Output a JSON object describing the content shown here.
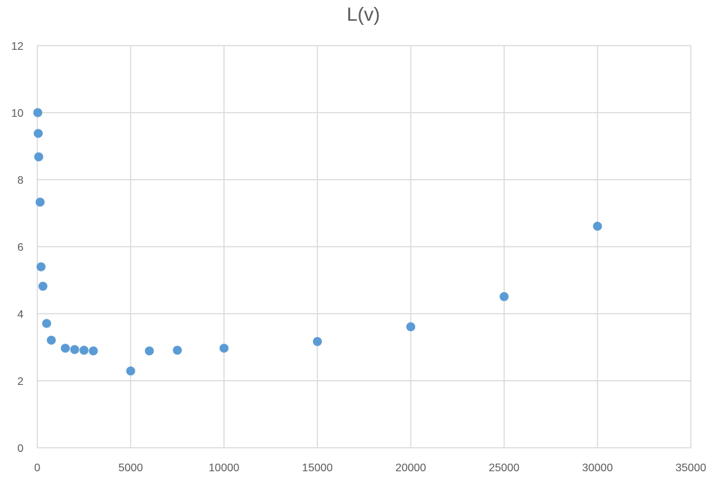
{
  "chart_data": {
    "type": "scatter",
    "title": "L(v)",
    "xlabel": "",
    "ylabel": "",
    "xlim": [
      0,
      35000
    ],
    "ylim": [
      0,
      12
    ],
    "x_ticks": [
      "0",
      "5000",
      "10000",
      "15000",
      "20000",
      "25000",
      "30000",
      "35000"
    ],
    "y_ticks": [
      "0",
      "2",
      "4",
      "6",
      "8",
      "10",
      "12"
    ],
    "grid": true,
    "legend": "none",
    "series": [
      {
        "color": "#5b9bd5",
        "points": [
          {
            "x": 25,
            "y": 10.0
          },
          {
            "x": 50,
            "y": 9.38
          },
          {
            "x": 75,
            "y": 8.68
          },
          {
            "x": 150,
            "y": 7.33
          },
          {
            "x": 200,
            "y": 5.4
          },
          {
            "x": 300,
            "y": 4.82
          },
          {
            "x": 500,
            "y": 3.71
          },
          {
            "x": 750,
            "y": 3.21
          },
          {
            "x": 1500,
            "y": 2.97
          },
          {
            "x": 2000,
            "y": 2.93
          },
          {
            "x": 2500,
            "y": 2.91
          },
          {
            "x": 3000,
            "y": 2.89
          },
          {
            "x": 5000,
            "y": 2.29
          },
          {
            "x": 6000,
            "y": 2.89
          },
          {
            "x": 7500,
            "y": 2.91
          },
          {
            "x": 10000,
            "y": 2.97
          },
          {
            "x": 15000,
            "y": 3.17
          },
          {
            "x": 20000,
            "y": 3.61
          },
          {
            "x": 25000,
            "y": 4.51
          },
          {
            "x": 30000,
            "y": 6.61
          }
        ]
      }
    ]
  }
}
